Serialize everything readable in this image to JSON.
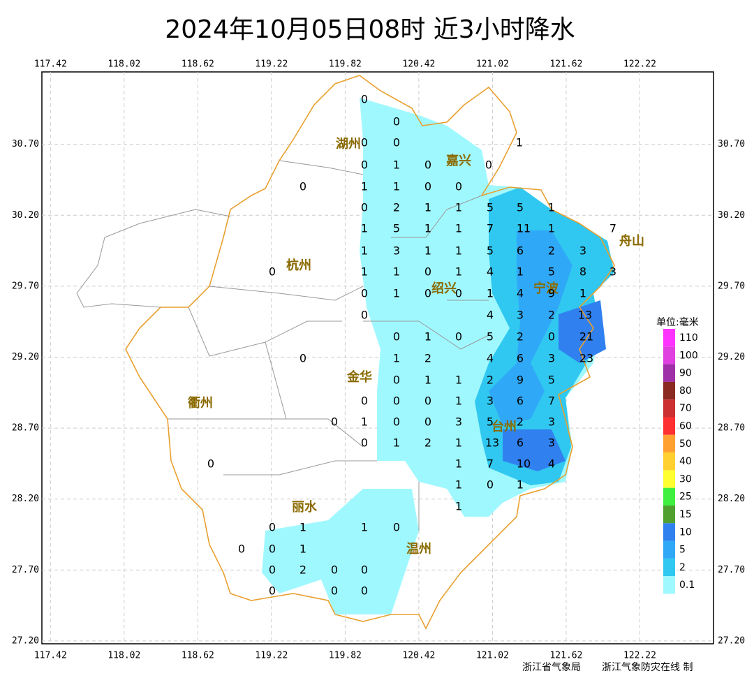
{
  "map": {
    "title": "2024年10月05日08时  近3小时降水",
    "xlim": [
      117.35,
      122.82
    ],
    "ylim": [
      27.18,
      31.21
    ],
    "xticks": [
      117.42,
      118.02,
      118.62,
      119.22,
      119.82,
      120.42,
      121.02,
      121.62,
      122.22
    ],
    "yticks": [
      {
        "value": 30.7,
        "label": "30.70"
      },
      {
        "value": 30.2,
        "label": "30.20"
      },
      {
        "value": 29.7,
        "label": "29.70"
      },
      {
        "value": 29.2,
        "label": "29.20"
      },
      {
        "value": 28.7,
        "label": "28.70"
      },
      {
        "value": 28.2,
        "label": "28.20"
      },
      {
        "value": 27.7,
        "label": "27.70"
      },
      {
        "value": 27.2,
        "label": "27.20"
      }
    ],
    "cities": [
      "湖州",
      "嘉兴",
      "杭州",
      "绍兴",
      "宁波",
      "舟山",
      "金华",
      "衢州",
      "台州",
      "丽水",
      "温州"
    ],
    "stations": [
      0,
      0,
      0,
      0,
      1,
      0,
      1,
      0,
      0,
      0,
      1,
      1,
      0,
      0,
      0,
      2,
      1,
      1,
      5,
      5,
      1,
      1,
      5,
      1,
      1,
      7,
      11,
      1,
      7,
      1,
      3,
      1,
      1,
      5,
      6,
      2,
      3,
      0,
      1,
      1,
      0,
      1,
      4,
      1,
      5,
      8,
      3,
      0,
      1,
      0,
      0,
      1,
      4,
      9,
      1,
      0,
      4,
      3,
      2,
      13,
      0,
      1,
      0,
      5,
      2,
      0,
      21,
      0,
      1,
      2,
      4,
      6,
      3,
      23,
      0,
      1,
      1,
      2,
      9,
      5,
      0,
      0,
      0,
      1,
      3,
      6,
      7,
      0,
      1,
      0,
      0,
      3,
      5,
      2,
      3,
      0,
      1,
      2,
      1,
      13,
      6,
      3,
      0,
      1,
      7,
      10,
      4,
      1,
      0,
      1,
      1,
      0,
      1,
      1,
      0,
      0,
      0,
      1,
      0,
      2,
      0,
      0,
      0,
      0,
      0
    ],
    "legend": {
      "title": "单位:毫米",
      "items": [
        {
          "label": 110,
          "color": "#ff33ff"
        },
        {
          "label": 100,
          "color": "#e040e0"
        },
        {
          "label": 90,
          "color": "#a030a8"
        },
        {
          "label": 80,
          "color": "#8b2a20"
        },
        {
          "label": 70,
          "color": "#cc3030"
        },
        {
          "label": 60,
          "color": "#ff3030"
        },
        {
          "label": 50,
          "color": "#ffa030"
        },
        {
          "label": 40,
          "color": "#ffd030"
        },
        {
          "label": 30,
          "color": "#ffff30"
        },
        {
          "label": 25,
          "color": "#40f040"
        },
        {
          "label": 15,
          "color": "#50a030"
        },
        {
          "label": 10,
          "color": "#3080f0"
        },
        {
          "label": 5,
          "color": "#30a8f8"
        },
        {
          "label": 2,
          "color": "#30c8f0"
        },
        {
          "label": 0.1,
          "color": "#a0f8ff"
        }
      ]
    },
    "credits": [
      "浙江省气象局",
      "浙江气象防灾在线 制"
    ]
  }
}
